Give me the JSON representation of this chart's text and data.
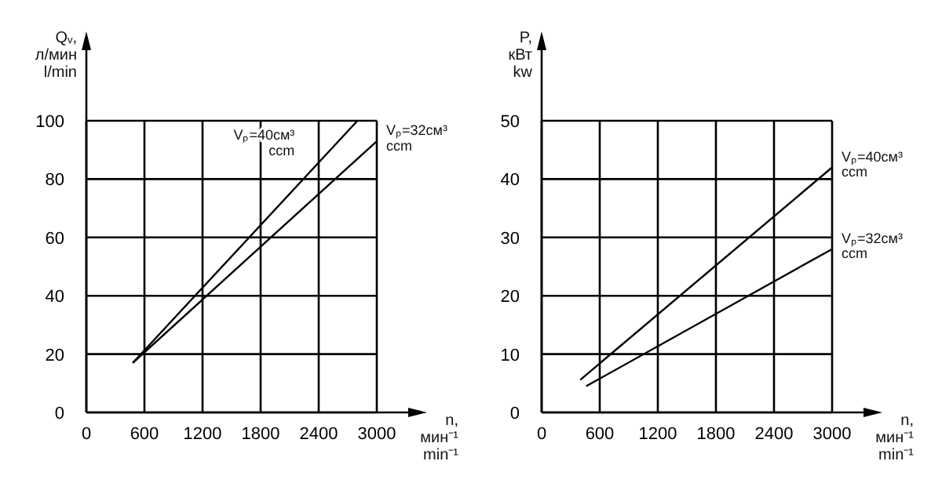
{
  "chart_data": [
    {
      "type": "line",
      "ylabel": "Qᵥ,\nл/мин\nl/min",
      "xlabel": "n,\nмин⁻¹\nmin⁻¹",
      "xlim": [
        0,
        3000
      ],
      "xticks": [
        0,
        600,
        1200,
        1800,
        2400,
        3000
      ],
      "ylim": [
        0,
        100
      ],
      "yticks": [
        0,
        20,
        40,
        60,
        80,
        100
      ],
      "grid": true,
      "line_style": "solid",
      "series": [
        {
          "name": "Vₚ=40см³\nccm",
          "color": "#000000",
          "x": [
            480,
            2800
          ],
          "values": [
            17,
            100
          ]
        },
        {
          "name": "Vₚ=32см³\nccm",
          "color": "#000000",
          "x": [
            480,
            3000
          ],
          "values": [
            17,
            93
          ]
        }
      ]
    },
    {
      "type": "line",
      "ylabel": "P,\nкВт\nkw",
      "xlabel": "n,\nмин⁻¹\nmin⁻¹",
      "xlim": [
        0,
        3000
      ],
      "xticks": [
        0,
        600,
        1200,
        1800,
        2400,
        3000
      ],
      "ylim": [
        0,
        50
      ],
      "yticks": [
        0,
        10,
        20,
        30,
        40,
        50
      ],
      "grid": true,
      "line_style": "solid",
      "series": [
        {
          "name": "Vₚ=40см³\nccm",
          "color": "#000000",
          "x": [
            400,
            3000
          ],
          "values": [
            5.6,
            42
          ]
        },
        {
          "name": "Vₚ=32см³\nccm",
          "color": "#000000",
          "x": [
            460,
            3000
          ],
          "values": [
            4.5,
            28
          ]
        }
      ]
    }
  ]
}
